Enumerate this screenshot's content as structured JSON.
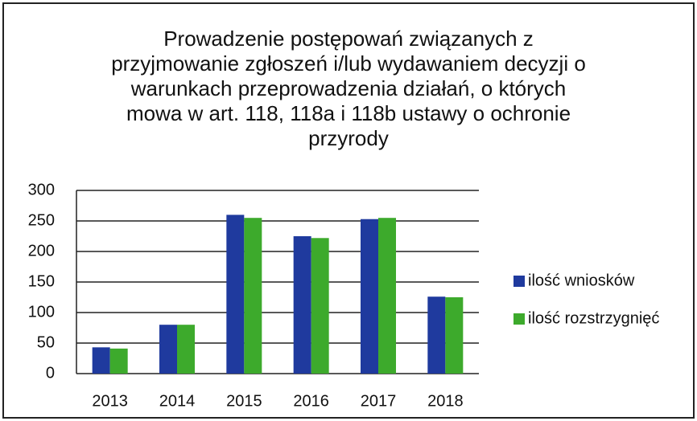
{
  "chart_data": {
    "type": "bar",
    "title": [
      "Prowadzenie postępowań związanych z",
      "przyjmowanie zgłoszeń i/lub wydawaniem decyzji o",
      "warunkach przeprowadzenia działań, o których",
      "mowa w art. 118, 118a i 118b ustawy o ochronie",
      "przyrody"
    ],
    "categories": [
      "2013",
      "2014",
      "2015",
      "2016",
      "2017",
      "2018"
    ],
    "series": [
      {
        "name": "ilość wniosków",
        "color": "#1f3a9e",
        "values": [
          43,
          80,
          260,
          225,
          253,
          126
        ]
      },
      {
        "name": "ilość rozstrzygnięć",
        "color": "#3daa2c",
        "values": [
          41,
          80,
          255,
          222,
          255,
          125
        ]
      }
    ],
    "ylim": [
      0,
      300
    ],
    "yticks": [
      0,
      50,
      100,
      150,
      200,
      250,
      300
    ],
    "grid": true,
    "legend": "right"
  }
}
